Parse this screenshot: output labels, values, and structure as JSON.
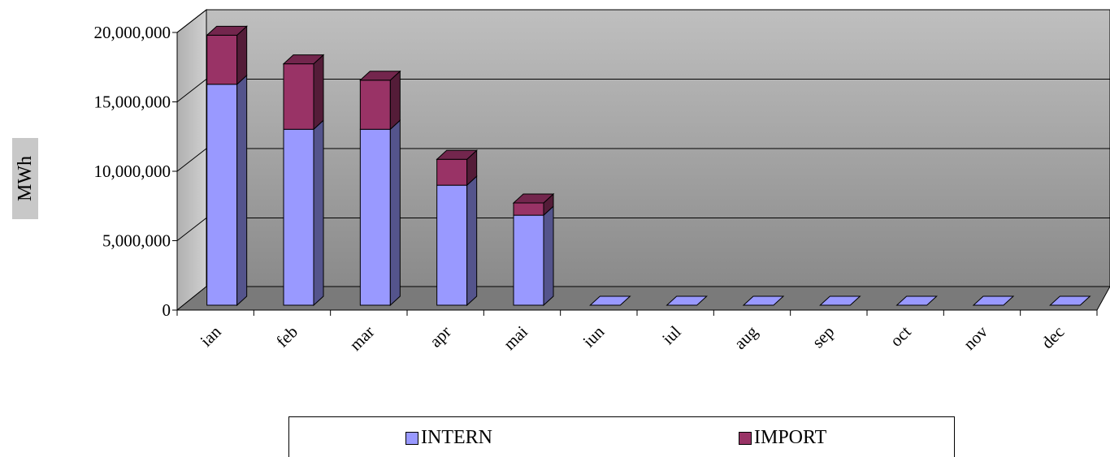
{
  "chart_data": {
    "type": "bar",
    "stacked": true,
    "three_d": true,
    "categories": [
      "ian",
      "feb",
      "mar",
      "apr",
      "mai",
      "iun",
      "iul",
      "aug",
      "sep",
      "oct",
      "nov",
      "dec"
    ],
    "series": [
      {
        "name": "INTERN",
        "color": "#9999ff",
        "values": [
          16200000,
          12900000,
          12900000,
          8800000,
          6600000,
          0,
          0,
          0,
          0,
          0,
          0,
          0
        ]
      },
      {
        "name": "IMPORT",
        "color": "#993366",
        "values": [
          3600000,
          4800000,
          3600000,
          1900000,
          900000,
          0,
          0,
          0,
          0,
          0,
          0,
          0
        ]
      }
    ],
    "ylabel": "MWh",
    "ylim": [
      0,
      20000000
    ],
    "yticks": [
      "0",
      "5,000,000",
      "10,000,000",
      "15,000,000",
      "20,000,000"
    ],
    "legend_position": "bottom",
    "grid": true
  }
}
